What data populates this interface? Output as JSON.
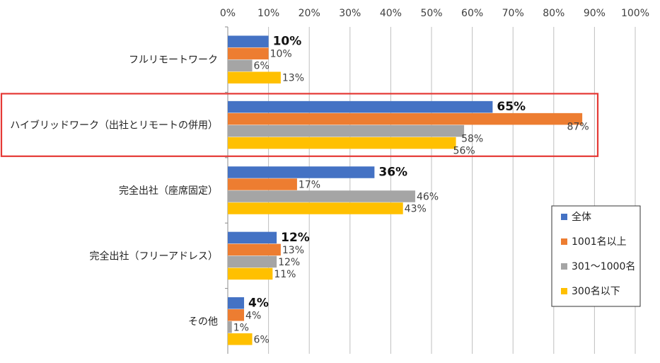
{
  "chart_data": {
    "type": "bar",
    "orientation": "horizontal",
    "categories": [
      "フルリモートワーク",
      "ハイブリッドワーク（出社とリモートの併用）",
      "完全出社（座席固定）",
      "完全出社（フリーアドレス）",
      "その他"
    ],
    "series": [
      {
        "name": "全体",
        "color": "#4472C4",
        "values": [
          10,
          65,
          36,
          12,
          4
        ]
      },
      {
        "name": "1001名以上",
        "color": "#ED7D31",
        "values": [
          10,
          87,
          17,
          13,
          4
        ]
      },
      {
        "name": "301～1000名",
        "color": "#A5A5A5",
        "values": [
          6,
          58,
          46,
          12,
          1
        ]
      },
      {
        "name": "300名以下",
        "color": "#FFC000",
        "values": [
          13,
          56,
          43,
          11,
          6
        ]
      }
    ],
    "xlim": [
      0,
      100
    ],
    "x_ticks": [
      "0%",
      "10%",
      "20%",
      "30%",
      "40%",
      "50%",
      "60%",
      "70%",
      "80%",
      "90%",
      "100%"
    ],
    "value_suffix": "%",
    "grid": true,
    "legend_position": "right",
    "highlighted_category": "ハイブリッドワーク（出社とリモートの併用）",
    "highlight_color": "#E53935"
  }
}
